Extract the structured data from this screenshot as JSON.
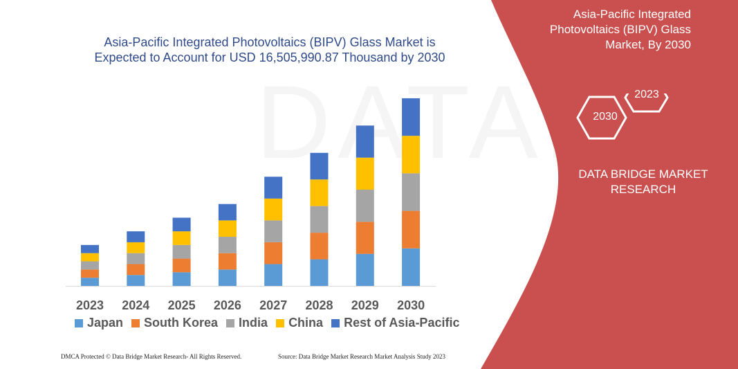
{
  "chart_data": {
    "type": "bar",
    "stacked": true,
    "title": "Asia-Pacific Integrated Photovoltaics (BIPV) Glass Market is Expected to Account for USD 16,505,990.87 Thousand by 2030",
    "categories": [
      "2023",
      "2024",
      "2025",
      "2026",
      "2027",
      "2028",
      "2029",
      "2030"
    ],
    "series": [
      {
        "name": "Japan",
        "color": "#5b9bd5",
        "values": [
          12,
          16,
          20,
          24,
          32,
          39,
          47,
          55
        ]
      },
      {
        "name": "South Korea",
        "color": "#ed7d31",
        "values": [
          12,
          16,
          20,
          24,
          32,
          39,
          47,
          55
        ]
      },
      {
        "name": "India",
        "color": "#a5a5a5",
        "values": [
          12,
          16,
          20,
          24,
          32,
          39,
          47,
          55
        ]
      },
      {
        "name": "China",
        "color": "#ffc000",
        "values": [
          12,
          16,
          20,
          24,
          32,
          39,
          47,
          55
        ]
      },
      {
        "name": "Rest of Asia-Pacific",
        "color": "#4472c4",
        "values": [
          12,
          16,
          20,
          24,
          32,
          39,
          47,
          55
        ]
      }
    ],
    "xlabel": "",
    "ylabel": "",
    "ylim": [
      0,
      280
    ],
    "grid": false,
    "legend": "bottom"
  },
  "panel": {
    "title": "Asia-Pacific Integrated Photovoltaics (BIPV) Glass Market, By 2030",
    "hex_a": "2023",
    "hex_b": "2030",
    "brand": "DATA BRIDGE MARKET RESEARCH",
    "color": "#c9504e"
  },
  "footer": {
    "left": "DMCA Protected © Data Bridge Market Research-  All Rights Reserved.",
    "right": "Source: Data Bridge Market Research  Market Analysis Study 2023"
  }
}
